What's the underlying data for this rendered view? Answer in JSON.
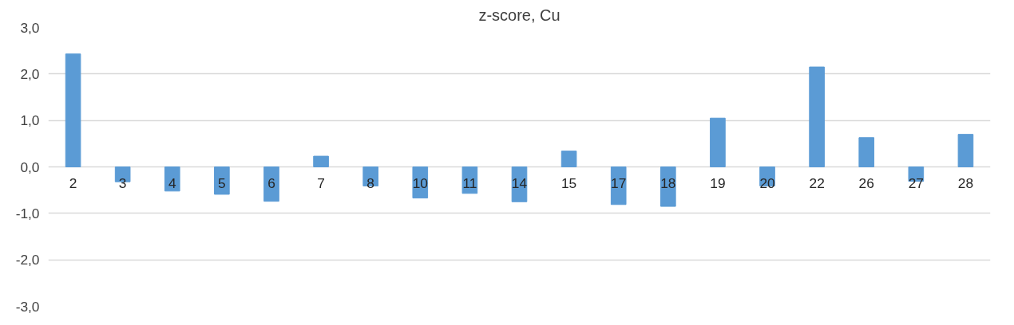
{
  "chart_data": {
    "type": "bar",
    "title": "z-score, Cu",
    "categories": [
      "2",
      "3",
      "4",
      "5",
      "6",
      "7",
      "8",
      "10",
      "11",
      "14",
      "15",
      "17",
      "18",
      "19",
      "20",
      "22",
      "26",
      "27",
      "28"
    ],
    "values": [
      2.43,
      -0.32,
      -0.52,
      -0.59,
      -0.74,
      0.23,
      -0.41,
      -0.67,
      -0.57,
      -0.75,
      0.34,
      -0.81,
      -0.85,
      1.05,
      -0.41,
      2.15,
      0.63,
      -0.31,
      0.7
    ],
    "color": "#5b9bd5",
    "ylim": [
      -3.0,
      3.0
    ],
    "yticks": [
      {
        "value": -3.0,
        "label": "-3,0"
      },
      {
        "value": -2.0,
        "label": "-2,0"
      },
      {
        "value": -1.0,
        "label": "-1,0"
      },
      {
        "value": 0.0,
        "label": "0,0"
      },
      {
        "value": 1.0,
        "label": "1,0"
      },
      {
        "value": 2.0,
        "label": "2,0"
      },
      {
        "value": 3.0,
        "label": "3,0"
      }
    ],
    "grid": "y"
  }
}
